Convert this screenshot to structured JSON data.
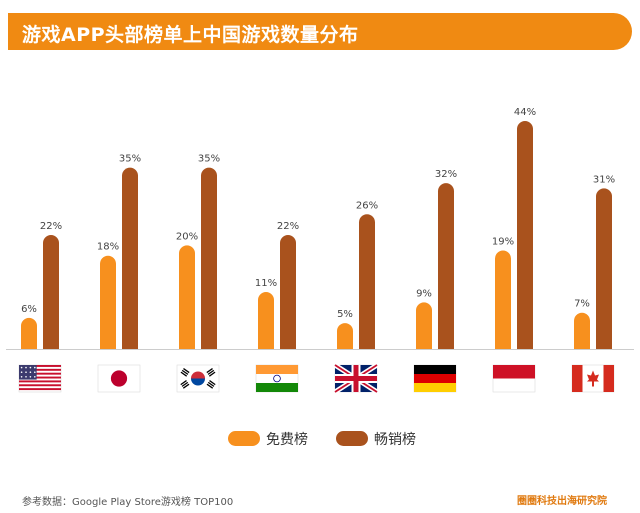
{
  "title": "游戏APP头部榜单上中国游戏数量分布",
  "source": "参考数据：Google Play Store游戏榜 TOP100",
  "brand": "圈圈科技出海研究院",
  "colors": {
    "free": "#f7901e",
    "grossing": "#a9521d",
    "title_bg": "#f08a12",
    "baseline": "#cccccc"
  },
  "chart_data": {
    "type": "bar",
    "categories": [
      "美国",
      "日本",
      "韩国",
      "印度",
      "英国",
      "德国",
      "印度尼西亚",
      "加拿大"
    ],
    "category_display": "flag icons",
    "flag_icons": [
      "usa-flag-icon",
      "japan-flag-icon",
      "korea-flag-icon",
      "india-flag-icon",
      "uk-flag-icon",
      "germany-flag-icon",
      "indonesia-flag-icon",
      "canada-flag-icon"
    ],
    "series": [
      {
        "name": "免费榜",
        "values": [
          6,
          18,
          20,
          11,
          5,
          9,
          19,
          7
        ]
      },
      {
        "name": "畅销榜",
        "values": [
          22,
          35,
          35,
          22,
          26,
          32,
          44,
          31
        ]
      }
    ],
    "value_suffix": "%",
    "ylim": [
      0,
      44
    ],
    "grid": false,
    "legend_position": "bottom-center"
  }
}
